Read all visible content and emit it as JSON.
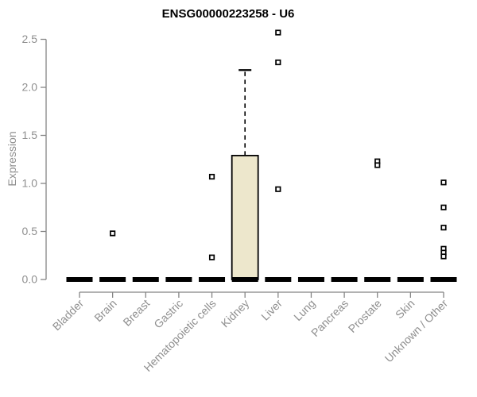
{
  "page": {
    "background": "#ffffff"
  },
  "chart_data": {
    "type": "boxplot",
    "title": "ENSG00000223258 - U6",
    "ylabel": "Expression",
    "xlabel": "",
    "ylim": [
      0,
      2.5
    ],
    "yticks": [
      0.0,
      0.5,
      1.0,
      1.5,
      2.0,
      2.5
    ],
    "grid": false,
    "legend": false,
    "categories": [
      "Bladder",
      "Brain",
      "Breast",
      "Gastric",
      "Hematopoietic cells",
      "Kidney",
      "Liver",
      "Lung",
      "Pancreas",
      "Prostate",
      "Skin",
      "Unknown / Other"
    ],
    "boxes": [
      {
        "category": "Bladder",
        "whisker_low": 0,
        "q1": 0,
        "median": 0,
        "q3": 0,
        "whisker_high": 0
      },
      {
        "category": "Brain",
        "whisker_low": 0,
        "q1": 0,
        "median": 0,
        "q3": 0,
        "whisker_high": 0
      },
      {
        "category": "Breast",
        "whisker_low": 0,
        "q1": 0,
        "median": 0,
        "q3": 0,
        "whisker_high": 0
      },
      {
        "category": "Gastric",
        "whisker_low": 0,
        "q1": 0,
        "median": 0,
        "q3": 0,
        "whisker_high": 0
      },
      {
        "category": "Hematopoietic cells",
        "whisker_low": 0,
        "q1": 0,
        "median": 0,
        "q3": 0,
        "whisker_high": 0
      },
      {
        "category": "Kidney",
        "whisker_low": 0,
        "q1": 0,
        "median": 0,
        "q3": 1.29,
        "whisker_high": 2.18
      },
      {
        "category": "Liver",
        "whisker_low": 0,
        "q1": 0,
        "median": 0,
        "q3": 0,
        "whisker_high": 0
      },
      {
        "category": "Lung",
        "whisker_low": 0,
        "q1": 0,
        "median": 0,
        "q3": 0,
        "whisker_high": 0
      },
      {
        "category": "Pancreas",
        "whisker_low": 0,
        "q1": 0,
        "median": 0,
        "q3": 0,
        "whisker_high": 0
      },
      {
        "category": "Prostate",
        "whisker_low": 0,
        "q1": 0,
        "median": 0,
        "q3": 0,
        "whisker_high": 0
      },
      {
        "category": "Skin",
        "whisker_low": 0,
        "q1": 0,
        "median": 0,
        "q3": 0,
        "whisker_high": 0
      },
      {
        "category": "Unknown / Other",
        "whisker_low": 0,
        "q1": 0,
        "median": 0,
        "q3": 0,
        "whisker_high": 0
      }
    ],
    "outlier_points": [
      {
        "category": "Brain",
        "value": 0.48
      },
      {
        "category": "Hematopoietic cells",
        "value": 1.07
      },
      {
        "category": "Hematopoietic cells",
        "value": 0.23
      },
      {
        "category": "Liver",
        "value": 2.57
      },
      {
        "category": "Liver",
        "value": 2.26
      },
      {
        "category": "Liver",
        "value": 0.94
      },
      {
        "category": "Prostate",
        "value": 1.23
      },
      {
        "category": "Prostate",
        "value": 1.19
      },
      {
        "category": "Unknown / Other",
        "value": 1.01
      },
      {
        "category": "Unknown / Other",
        "value": 0.75
      },
      {
        "category": "Unknown / Other",
        "value": 0.54
      },
      {
        "category": "Unknown / Other",
        "value": 0.32
      },
      {
        "category": "Unknown / Other",
        "value": 0.28
      },
      {
        "category": "Unknown / Other",
        "value": 0.24
      }
    ],
    "style": {
      "box_fill": "#ede7cc",
      "box_stroke": "#000000",
      "median_color": "#000000",
      "whisker_style": "dashed",
      "marker": "open-square",
      "marker_fill": "#ffffff",
      "marker_stroke": "#000000",
      "axis_color": "#858585",
      "tick_label_color": "#8f8f8f",
      "title_color": "#000000"
    }
  }
}
